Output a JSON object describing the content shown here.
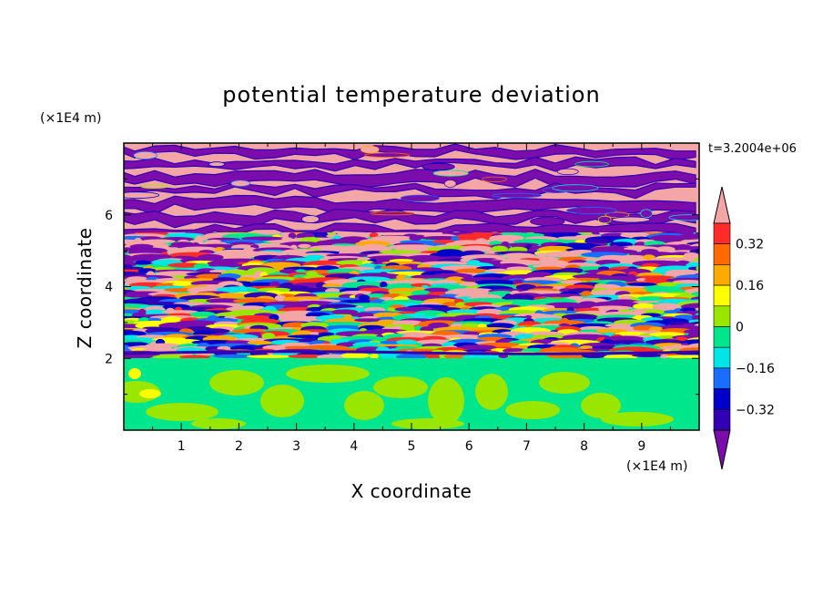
{
  "chart_data": {
    "type": "heatmap",
    "title": "potential temperature deviation",
    "xlabel": "X coordinate",
    "ylabel": "Z coordinate",
    "x_unit": "(×1E4 m)",
    "y_unit": "(×1E4 m)",
    "time_label": "t=3.2004e+06",
    "xlim": [
      0,
      10
    ],
    "ylim": [
      0,
      8
    ],
    "x_ticks": [
      1,
      2,
      3,
      4,
      5,
      6,
      7,
      8,
      9
    ],
    "y_ticks": [
      2,
      4,
      6
    ],
    "colorbar": {
      "ticks": [
        {
          "value": 0.32,
          "label": "0.32"
        },
        {
          "value": 0.16,
          "label": "0.16"
        },
        {
          "value": 0,
          "label": "0"
        },
        {
          "value": -0.16,
          "label": "−0.16"
        },
        {
          "value": -0.32,
          "label": "−0.32"
        }
      ],
      "levels": [
        {
          "range": "> 0.40",
          "color": "#f4a6a6"
        },
        {
          "range": "0.32 to 0.40",
          "color": "#ff2a2a"
        },
        {
          "range": "0.24 to 0.32",
          "color": "#ff6a00"
        },
        {
          "range": "0.16 to 0.24",
          "color": "#ffaa00"
        },
        {
          "range": "0.08 to 0.16",
          "color": "#ffff00"
        },
        {
          "range": "0 to 0.08",
          "color": "#99e600"
        },
        {
          "range": "-0.08 to 0",
          "color": "#00e68c"
        },
        {
          "range": "-0.16 to -0.08",
          "color": "#00e6e6"
        },
        {
          "range": "-0.24 to -0.16",
          "color": "#1a6eff"
        },
        {
          "range": "-0.32 to -0.24",
          "color": "#0000cc"
        },
        {
          "range": "-0.40 to -0.32",
          "color": "#3300b3"
        },
        {
          "range": "< -0.40",
          "color": "#7a0dab"
        }
      ]
    },
    "field_regions": [
      {
        "z_range": [
          0,
          2
        ],
        "description": "lower layer",
        "dominant_values": [
          "-0.08 to 0",
          "0 to 0.08"
        ]
      },
      {
        "z_range": [
          2,
          5.2
        ],
        "description": "mixed layer",
        "dominant_values": [
          "-0.40 to 0.40 mixed"
        ]
      },
      {
        "z_range": [
          5.2,
          8
        ],
        "description": "upper layer",
        "dominant_values": [
          "> 0.40",
          "< -0.40"
        ]
      }
    ]
  }
}
